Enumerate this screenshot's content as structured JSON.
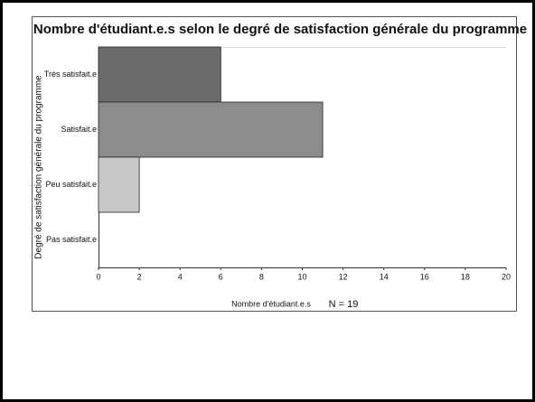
{
  "chart_data": {
    "type": "bar",
    "orientation": "horizontal",
    "title": "Nombre d'étudiant.e.s selon le degré de satisfaction générale du programme",
    "x_label": "Nombre d'étudiant.e.s",
    "annotation": "N = 19",
    "y_label": "Degré de satisfaction générale du programme",
    "categories": [
      "Très satisfait.e",
      "Satisfait.e",
      "Peu satisfait.e",
      "Pas satisfait.e"
    ],
    "values": [
      6,
      11,
      2,
      0
    ],
    "colors": [
      "#6b6b6b",
      "#8c8c8c",
      "#c8c8c8",
      "#e0e0e0"
    ],
    "xlim": [
      0,
      20
    ],
    "xticks": [
      0,
      2,
      4,
      6,
      8,
      10,
      12,
      14,
      16,
      18,
      20
    ],
    "grid": false
  }
}
